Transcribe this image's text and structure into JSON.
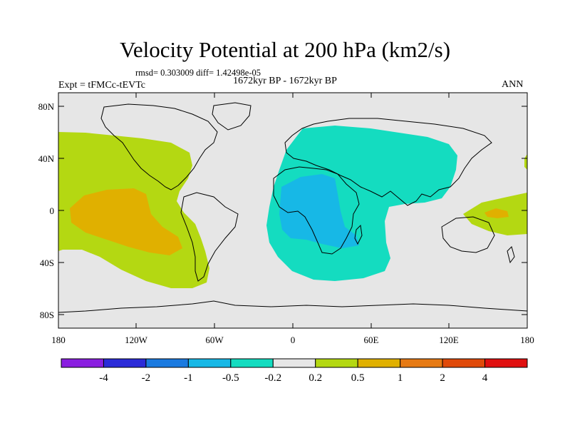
{
  "title": "Velocity Potential at 200 hPa (km2/s)",
  "stats": "rmsd= 0.303009 diff= 1.42498e-05",
  "period": "1672kyr BP - 1672kyr BP",
  "expt": "Expt = tFMCc-tEVTc",
  "season": "ANN",
  "chart_data": {
    "type": "contour-map",
    "variable": "Velocity Potential at 200 hPa",
    "units": "km2/s",
    "x_ticks": [
      "180",
      "120W",
      "60W",
      "0",
      "60E",
      "120E",
      "180"
    ],
    "y_ticks": [
      "80N",
      "40N",
      "0",
      "40S",
      "80S"
    ],
    "xlim": [
      -180,
      180
    ],
    "ylim": [
      -90,
      90
    ],
    "colorbar": {
      "levels": [
        "-4",
        "-2",
        "-1",
        "-0.5",
        "-0.2",
        "0.2",
        "0.5",
        "1",
        "2",
        "4"
      ],
      "colors": [
        "#8a1ee0",
        "#2b2bd8",
        "#1a7ae0",
        "#17b8e6",
        "#14dcc0",
        "#e6e6e6",
        "#b4d812",
        "#e0b000",
        "#e67a14",
        "#e04a0a",
        "#e01010"
      ]
    },
    "regions": [
      {
        "name": "Eastern Pacific / Americas positive anomaly",
        "class": "0.2 to 0.5"
      },
      {
        "name": "Eastern tropical Pacific core",
        "class": "0.5 to 1"
      },
      {
        "name": "Africa / Indian Ocean / Asia negative anomaly",
        "class": "-0.5 to -0.2"
      },
      {
        "name": "Central Africa core",
        "class": "-1 to -0.5"
      },
      {
        "name": "Western Pacific positive anomaly",
        "class": "0.2 to 0.5"
      },
      {
        "name": "Western Pacific core",
        "class": "0.5 to 1"
      }
    ]
  }
}
